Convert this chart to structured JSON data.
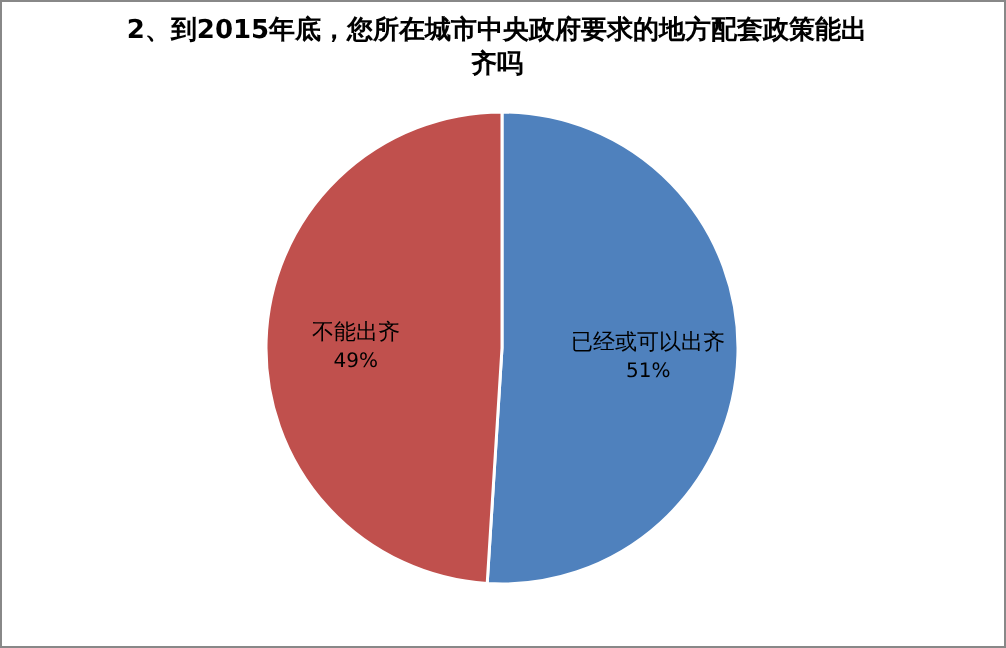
{
  "chart_data": {
    "type": "pie",
    "title": "2、到2015年底，您所在城市中央政府要求的地方配套政策能出齐吗",
    "categories": [
      "已经或可以出齐",
      "不能出齐"
    ],
    "values": [
      51,
      49
    ],
    "colors": [
      "#4f81bd",
      "#c0504d"
    ],
    "value_labels": [
      "51%",
      "49%"
    ]
  }
}
